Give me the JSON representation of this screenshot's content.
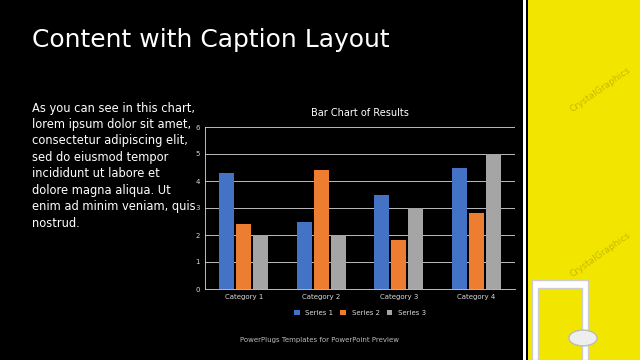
{
  "slide": {
    "title": "Content with Caption Layout",
    "caption_lines": [
      "As you can see in this chart,",
      "lorem ipsum dolor sit amet,",
      "consectetur adipiscing elit,",
      "sed do eiusmod tempor",
      "incididunt ut labore et",
      "dolore magna aliqua. Ut",
      "enim ad minim veniam, quis",
      "nostrud."
    ],
    "footer": "PowerPlugs Templates for PowerPoint Preview",
    "watermark": "CrystalGraphics"
  },
  "chart_data": {
    "type": "bar",
    "title": "Bar Chart of Results",
    "categories": [
      "Category 1",
      "Category 2",
      "Category 3",
      "Category 4"
    ],
    "series": [
      {
        "name": "Series 1",
        "color": "#4472c4",
        "values": [
          4.3,
          2.5,
          3.5,
          4.5
        ]
      },
      {
        "name": "Series 2",
        "color": "#ed7d31",
        "values": [
          2.4,
          4.4,
          1.8,
          2.8
        ]
      },
      {
        "name": "Series 3",
        "color": "#a5a5a5",
        "values": [
          2,
          2,
          3,
          5
        ]
      }
    ],
    "ylim": [
      0,
      6
    ],
    "yticks": [
      0,
      1,
      2,
      3,
      4,
      5,
      6
    ],
    "grid": true,
    "legend": "bottom"
  }
}
